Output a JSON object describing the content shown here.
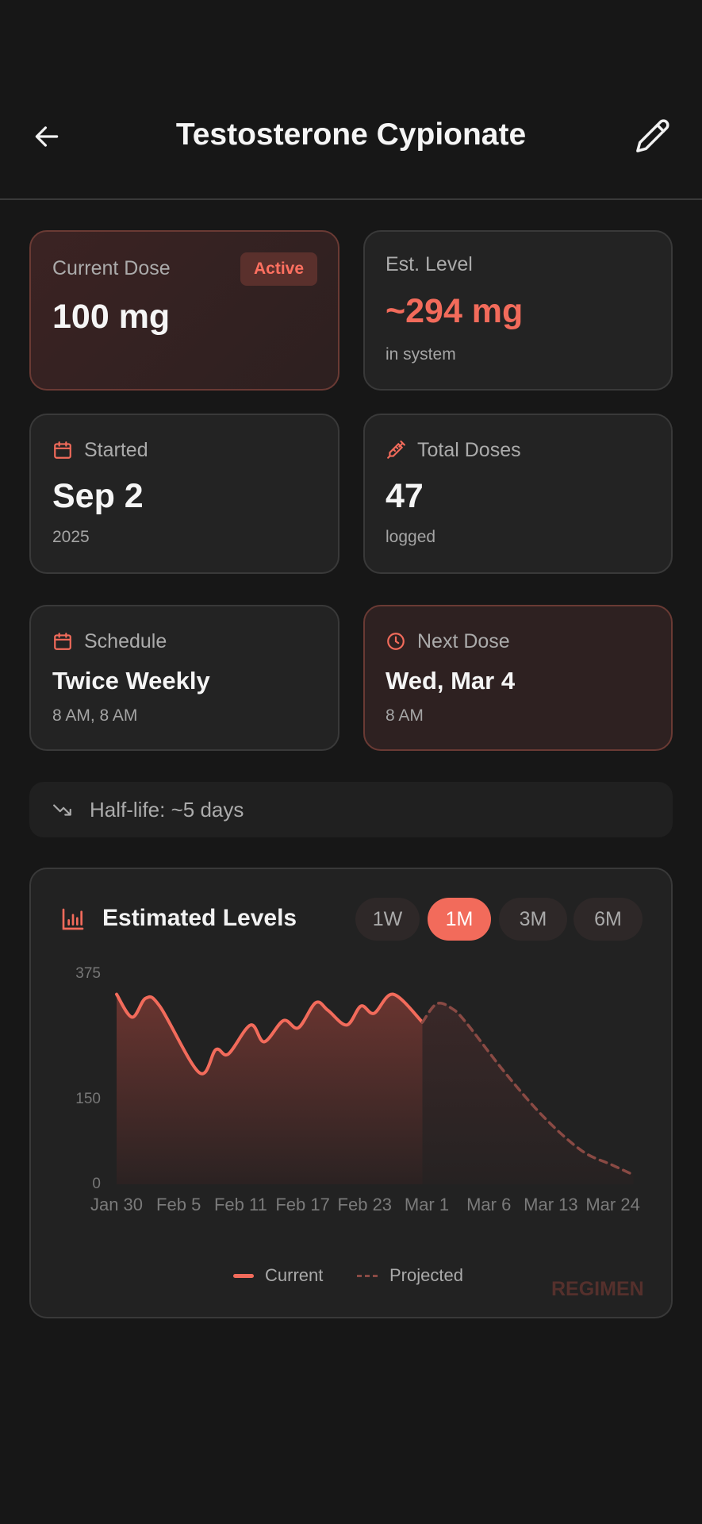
{
  "header": {
    "title": "Testosterone Cypionate",
    "back_icon": "arrow-left-icon",
    "edit_icon": "pencil-icon"
  },
  "cards": {
    "current_dose": {
      "label": "Current Dose",
      "value": "100 mg",
      "badge": "Active"
    },
    "est_level": {
      "label": "Est. Level",
      "value": "~294 mg",
      "sub": "in system"
    },
    "started": {
      "label": "Started",
      "value": "Sep 2",
      "sub": "2025",
      "icon": "calendar-icon"
    },
    "total_doses": {
      "label": "Total Doses",
      "value": "47",
      "sub": "logged",
      "icon": "syringe-icon"
    },
    "schedule": {
      "label": "Schedule",
      "value": "Twice Weekly",
      "sub": "8 AM, 8 AM",
      "icon": "calendar-icon"
    },
    "next_dose": {
      "label": "Next Dose",
      "value": "Wed, Mar 4",
      "sub": "8 AM",
      "icon": "clock-icon"
    }
  },
  "half_life": {
    "text": "Half-life: ~5 days",
    "icon": "trending-down-icon"
  },
  "chart_card": {
    "title": "Estimated Levels",
    "ranges": [
      "1W",
      "1M",
      "3M",
      "6M"
    ],
    "selected_range": "1M",
    "watermark": "REGIMEN"
  },
  "colors": {
    "accent": "#f26b5b",
    "background": "#171717",
    "card": "#232323"
  },
  "chart_data": {
    "type": "area",
    "title": "Estimated Levels",
    "ylim": [
      0,
      375
    ],
    "yticks": [
      0,
      150,
      375
    ],
    "xticks": [
      "Jan 30",
      "Feb 5",
      "Feb 11",
      "Feb 17",
      "Feb 23",
      "Mar 1",
      "Mar 6",
      "Mar 13",
      "Mar 24"
    ],
    "x_units": "tick index",
    "legend": [
      "Current",
      "Projected"
    ],
    "legend_position": "bottom",
    "series": [
      {
        "name": "Current",
        "style": "solid",
        "points": [
          [
            0,
            340
          ],
          [
            0.25,
            299
          ],
          [
            0.47,
            333
          ],
          [
            0.7,
            318
          ],
          [
            1.33,
            200
          ],
          [
            1.6,
            241
          ],
          [
            1.8,
            233
          ],
          [
            2.16,
            285
          ],
          [
            2.38,
            255
          ],
          [
            2.69,
            293
          ],
          [
            2.93,
            280
          ],
          [
            3.21,
            325
          ],
          [
            3.41,
            311
          ],
          [
            3.71,
            285
          ],
          [
            3.94,
            319
          ],
          [
            4.15,
            306
          ],
          [
            4.46,
            340
          ],
          [
            4.93,
            290
          ]
        ]
      },
      {
        "name": "Projected",
        "style": "dashed",
        "points": [
          [
            4.93,
            290
          ],
          [
            5.16,
            323
          ],
          [
            5.4,
            315
          ],
          [
            5.63,
            290
          ],
          [
            6.26,
            200
          ],
          [
            6.89,
            120
          ],
          [
            7.5,
            60
          ],
          [
            7.98,
            35
          ],
          [
            8.33,
            17
          ]
        ]
      }
    ]
  }
}
